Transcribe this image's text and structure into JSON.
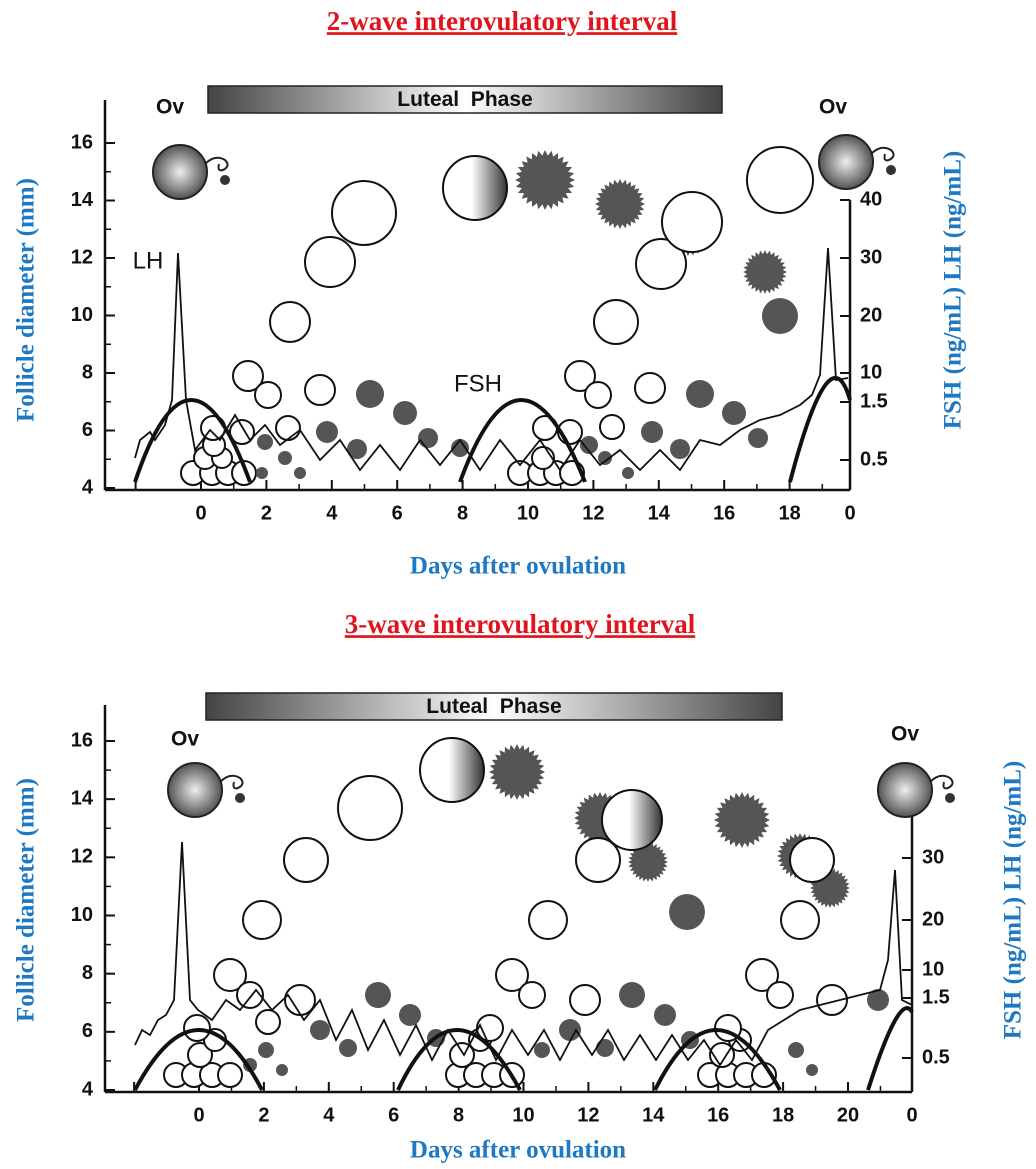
{
  "panels": [
    {
      "title": "2-wave interovulatory interval",
      "band": "Luteal  Phase",
      "y_axis_label": "Follicle diameter (mm)",
      "y2_axis_label": "FSH (ng/mL)  LH (ng/mL)",
      "x_axis_label": "Days after ovulation",
      "yticks": [
        4,
        6,
        8,
        10,
        12,
        14,
        16
      ],
      "xticks": [
        "0",
        "2",
        "4",
        "6",
        "8",
        "10",
        "12",
        "14",
        "16",
        "18",
        "0"
      ],
      "y2ticks": [
        "40",
        "30",
        "20",
        "10",
        "1.5",
        "0.5"
      ],
      "annotations": [
        "Ov",
        "Ov",
        "LH",
        "FSH"
      ]
    },
    {
      "title": "3-wave interovulatory interval",
      "band": "Luteal  Phase",
      "y_axis_label": "Follicle diameter (mm)",
      "y2_axis_label": "FSH (ng/mL)  LH (ng/mL)",
      "x_axis_label": "Days after ovulation",
      "yticks": [
        4,
        6,
        8,
        10,
        12,
        14,
        16
      ],
      "xticks": [
        "0",
        "2",
        "4",
        "6",
        "8",
        "10",
        "12",
        "14",
        "16",
        "18",
        "20",
        "0"
      ],
      "y2ticks": [
        "30",
        "20",
        "10",
        "1.5",
        "0.5"
      ],
      "annotations": [
        "Ov",
        "Ov"
      ]
    }
  ]
}
